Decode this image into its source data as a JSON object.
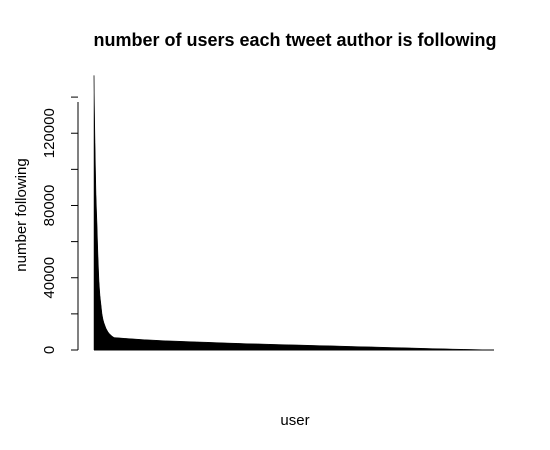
{
  "chart_data": {
    "type": "area",
    "title": "number of users each tweet author is following",
    "xlabel": "user",
    "ylabel": "number following",
    "yticks": [
      0,
      40000,
      80000,
      120000
    ],
    "ylim": [
      0,
      155000
    ],
    "x_axis_ticks": false,
    "series": [
      {
        "values": [
          152000,
          115000,
          86000,
          70000,
          52000,
          38000,
          30000,
          25000,
          20000,
          17000,
          15000,
          13500,
          12000,
          11000,
          10000,
          9300,
          8700,
          8200,
          7700,
          7300,
          6900,
          6500,
          6100,
          5700,
          5400,
          5100,
          4900,
          4700,
          4500,
          4300,
          4100,
          3900,
          3700,
          3500,
          3350,
          3200,
          3050,
          2900,
          2750,
          2600,
          2450,
          2300,
          2150,
          2000,
          1850,
          1700,
          1550,
          1400,
          1250,
          1100,
          950,
          800,
          650,
          500,
          380,
          250,
          120,
          0
        ]
      }
    ]
  }
}
